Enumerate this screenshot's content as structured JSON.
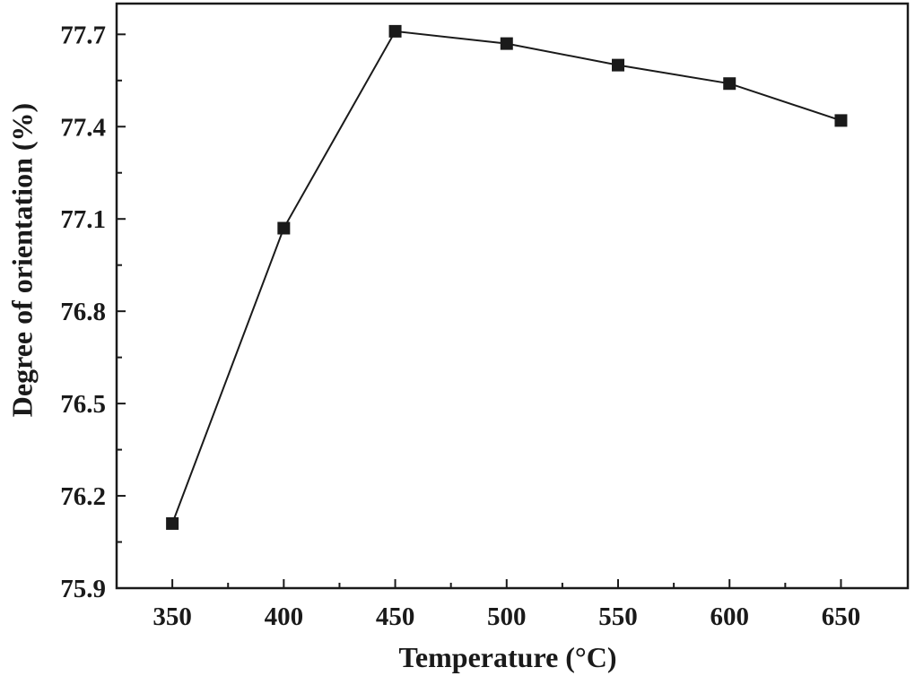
{
  "chart_data": {
    "type": "line",
    "title": "",
    "xlabel": "Temperature (°C)",
    "ylabel": "Degree of orientation (%)",
    "xlim": [
      325,
      680
    ],
    "ylim": [
      75.9,
      77.8
    ],
    "xticks": [
      350,
      400,
      450,
      500,
      550,
      600,
      650
    ],
    "yticks": [
      75.9,
      76.2,
      76.5,
      76.8,
      77.1,
      77.4,
      77.7
    ],
    "xtick_labels": [
      "350",
      "400",
      "450",
      "500",
      "550",
      "600",
      "650"
    ],
    "ytick_labels": [
      "75.9",
      "76.2",
      "76.5",
      "76.8",
      "77.1",
      "77.4",
      "77.7"
    ],
    "grid": false,
    "legend": "none",
    "series": [
      {
        "x": [
          350,
          400,
          450,
          500,
          550,
          600,
          650
        ],
        "values": [
          76.11,
          77.07,
          77.71,
          77.67,
          77.6,
          77.54,
          77.42
        ],
        "marker": "square",
        "color": "#1a1a1a"
      }
    ]
  }
}
